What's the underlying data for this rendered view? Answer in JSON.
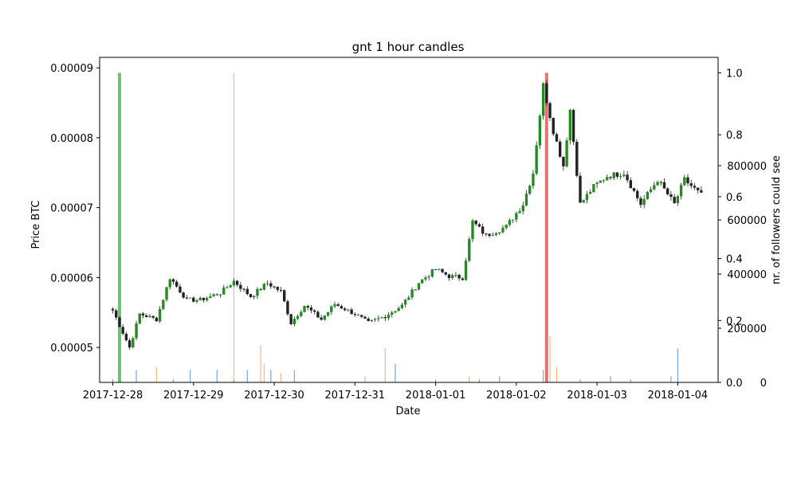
{
  "chart_data": {
    "type": "candlestick",
    "title": "gnt 1 hour candles",
    "xlabel": "Date",
    "ylabel": "Price BTC",
    "ylabel_right": "nr. of followers could see",
    "ylim": [
      4.5e-05,
      9.15e-05
    ],
    "xlim": [
      "2017-12-27T20:05",
      "2018-01-04T12:00"
    ],
    "x_ticks": [
      "2017-12-28",
      "2017-12-29",
      "2017-12-30",
      "2017-12-31",
      "2018-01-01",
      "2018-01-02",
      "2018-01-03",
      "2018-01-04"
    ],
    "y_ticks": [
      5e-05,
      6e-05,
      7e-05,
      8e-05,
      9e-05
    ],
    "y_tick_labels": [
      "0.00005",
      "0.00006",
      "0.00007",
      "0.00008",
      "0.00009"
    ],
    "right_axis_fraction": {
      "ylim": [
        0.0,
        1.05
      ],
      "ticks": [
        0.0,
        0.2,
        0.4,
        0.6,
        0.8,
        1.0
      ],
      "tick_labels": [
        "0.0",
        "0.2",
        "0.4",
        "0.6",
        "0.8",
        "1.0"
      ]
    },
    "right_axis_followers": {
      "ylim": [
        0,
        1200000
      ],
      "ticks": [
        0,
        200000,
        400000,
        600000,
        800000
      ],
      "tick_labels": [
        "0",
        "200000",
        "400000",
        "600000",
        "800000"
      ],
      "log_scale": false
    },
    "colors": {
      "up": "#228b22",
      "down": "#222222",
      "wick": "#222222",
      "volume_blue": "#5b8fd0",
      "volume_orange": "#f4a460",
      "signal_green": "#4caf50",
      "signal_red": "#e05050"
    },
    "candle_anchors": [
      [
        "2017-12-28T00:00",
        5.53e-05
      ],
      [
        "2017-12-28T05:00",
        5e-05
      ],
      [
        "2017-12-28T08:00",
        5.48e-05
      ],
      [
        "2017-12-28T13:00",
        5.4e-05
      ],
      [
        "2017-12-28T17:00",
        6e-05
      ],
      [
        "2017-12-28T22:00",
        5.68e-05
      ],
      [
        "2017-12-29T02:00",
        5.68e-05
      ],
      [
        "2017-12-29T08:00",
        5.78e-05
      ],
      [
        "2017-12-29T12:00",
        5.95e-05
      ],
      [
        "2017-12-29T17:00",
        5.73e-05
      ],
      [
        "2017-12-29T22:00",
        5.92e-05
      ],
      [
        "2017-12-30T02:00",
        5.8e-05
      ],
      [
        "2017-12-30T05:00",
        5.35e-05
      ],
      [
        "2017-12-30T09:00",
        5.6e-05
      ],
      [
        "2017-12-30T14:00",
        5.4e-05
      ],
      [
        "2017-12-30T18:00",
        5.62e-05
      ],
      [
        "2017-12-31T00:00",
        5.48e-05
      ],
      [
        "2017-12-31T04:00",
        5.35e-05
      ],
      [
        "2017-12-31T09:00",
        5.45e-05
      ],
      [
        "2017-12-31T14:00",
        5.6e-05
      ],
      [
        "2017-12-31T19:00",
        5.93e-05
      ],
      [
        "2018-01-01T00:00",
        6.12e-05
      ],
      [
        "2018-01-01T04:00",
        6.02e-05
      ],
      [
        "2018-01-01T08:00",
        6e-05
      ],
      [
        "2018-01-01T11:00",
        6.8e-05
      ],
      [
        "2018-01-01T15:00",
        6.6e-05
      ],
      [
        "2018-01-01T21:00",
        6.73e-05
      ],
      [
        "2018-01-02T02:00",
        7.05e-05
      ],
      [
        "2018-01-02T05:00",
        7.5e-05
      ],
      [
        "2018-01-02T08:00",
        8.75e-05
      ],
      [
        "2018-01-02T11:00",
        8.1e-05
      ],
      [
        "2018-01-02T14:00",
        7.6e-05
      ],
      [
        "2018-01-02T16:00",
        8.4e-05
      ],
      [
        "2018-01-02T19:00",
        7.05e-05
      ],
      [
        "2018-01-02T23:00",
        7.3e-05
      ],
      [
        "2018-01-03T03:00",
        7.45e-05
      ],
      [
        "2018-01-03T08:00",
        7.5e-05
      ],
      [
        "2018-01-03T13:00",
        7.05e-05
      ],
      [
        "2018-01-03T18:00",
        7.4e-05
      ],
      [
        "2018-01-03T23:00",
        7.05e-05
      ],
      [
        "2018-01-04T02:00",
        7.4e-05
      ],
      [
        "2018-01-04T07:00",
        7.18e-05
      ]
    ],
    "volume_bars": [
      [
        "2017-12-28T00:00",
        0.01,
        "blue"
      ],
      [
        "2017-12-28T07:00",
        0.04,
        "blue"
      ],
      [
        "2017-12-28T13:00",
        0.05,
        "orange"
      ],
      [
        "2017-12-28T18:00",
        0.01,
        "blue"
      ],
      [
        "2017-12-28T23:00",
        0.04,
        "blue"
      ],
      [
        "2017-12-29T07:00",
        0.04,
        "blue"
      ],
      [
        "2017-12-29T12:00",
        0.01,
        "blue"
      ],
      [
        "2017-12-29T16:00",
        0.04,
        "blue"
      ],
      [
        "2017-12-29T20:00",
        0.12,
        "orange"
      ],
      [
        "2017-12-29T21:00",
        0.06,
        "orange"
      ],
      [
        "2017-12-29T23:00",
        0.04,
        "blue"
      ],
      [
        "2017-12-30T02:00",
        0.03,
        "orange"
      ],
      [
        "2017-12-30T06:00",
        0.04,
        "blue"
      ],
      [
        "2017-12-31T03:00",
        0.02,
        "orange"
      ],
      [
        "2017-12-31T09:00",
        0.11,
        "orange"
      ],
      [
        "2017-12-31T12:00",
        0.06,
        "blue"
      ],
      [
        "2018-01-01T00:00",
        0.01,
        "blue"
      ],
      [
        "2018-01-01T10:00",
        0.02,
        "orange"
      ],
      [
        "2018-01-01T13:00",
        0.01,
        "blue"
      ],
      [
        "2018-01-01T19:00",
        0.02,
        "blue"
      ],
      [
        "2018-01-02T08:00",
        0.04,
        "blue"
      ],
      [
        "2018-01-02T12:00",
        0.05,
        "orange"
      ],
      [
        "2018-01-02T19:00",
        0.01,
        "blue"
      ],
      [
        "2018-01-03T04:00",
        0.02,
        "blue"
      ],
      [
        "2018-01-03T10:00",
        0.01,
        "blue"
      ],
      [
        "2018-01-03T22:00",
        0.02,
        "blue"
      ],
      [
        "2018-01-04T00:00",
        0.11,
        "blue"
      ]
    ],
    "signal_bars": [
      [
        "2017-12-28T02:00",
        1.0,
        "green"
      ],
      [
        "2017-12-29T12:00",
        1.0,
        "orange"
      ],
      [
        "2018-01-02T09:00",
        1.0,
        "red"
      ],
      [
        "2018-01-02T10:00",
        0.15,
        "orange"
      ]
    ]
  }
}
